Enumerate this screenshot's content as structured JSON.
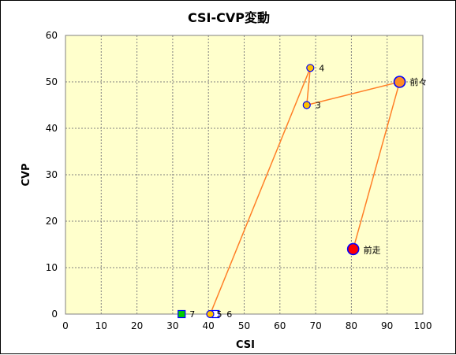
{
  "chart_data": {
    "type": "scatter",
    "title": "CSI-CVP変動",
    "xlabel": "CSI",
    "ylabel": "CVP",
    "xlim": [
      0,
      100
    ],
    "ylim": [
      0,
      60
    ],
    "x_ticks": [
      0,
      10,
      20,
      30,
      40,
      50,
      60,
      70,
      80,
      90,
      100
    ],
    "y_ticks": [
      0,
      10,
      20,
      30,
      40,
      50,
      60
    ],
    "grid": true,
    "plot_background": "#ffffcc",
    "line_color": "#ff7f27",
    "path_order": [
      "前走",
      "前々",
      "3",
      "4",
      "5",
      "6"
    ],
    "points": [
      {
        "label": "前走",
        "x": 80.5,
        "y": 14,
        "marker": "circle-large",
        "fill": "#ff0000",
        "stroke": "#0000ff"
      },
      {
        "label": "前々",
        "x": 93.5,
        "y": 50,
        "marker": "circle-large",
        "fill": "#ff8c26",
        "stroke": "#0000ff"
      },
      {
        "label": "3",
        "x": 67.5,
        "y": 45,
        "marker": "circle",
        "fill": "#ffc000",
        "stroke": "#0000ff"
      },
      {
        "label": "4",
        "x": 68.5,
        "y": 53,
        "marker": "circle",
        "fill": "#ffc000",
        "stroke": "#0000ff"
      },
      {
        "label": "5",
        "x": 40.5,
        "y": 0,
        "marker": "circle",
        "fill": "#ffc000",
        "stroke": "#0000ff"
      },
      {
        "label": "6",
        "x": 42,
        "y": 0,
        "marker": "square",
        "fill": "#ffffff",
        "stroke": "#0000ff"
      },
      {
        "label": "7",
        "x": 32.5,
        "y": 0,
        "marker": "square",
        "fill": "#00cc00",
        "stroke": "#0000ff"
      }
    ]
  }
}
